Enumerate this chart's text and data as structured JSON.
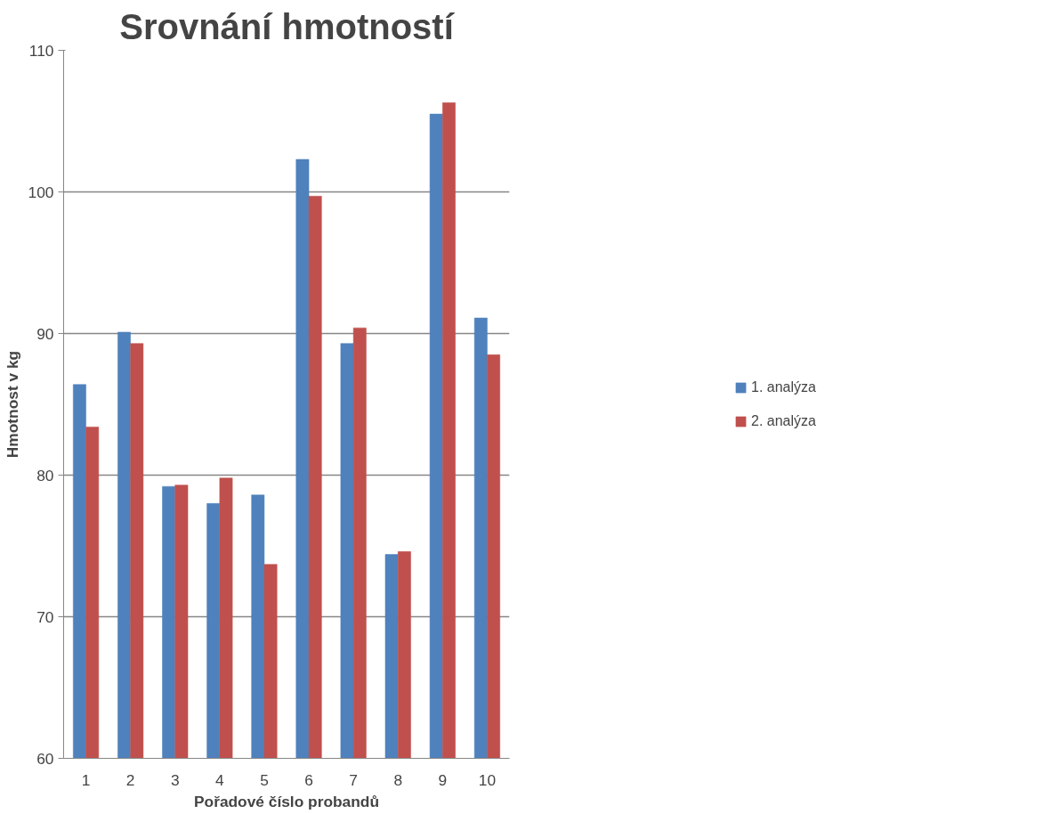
{
  "chart_data": {
    "type": "bar",
    "title": "Srovnání hmotností",
    "xlabel": "Pořadové číslo probandů",
    "ylabel": "Hmotnost v kg",
    "categories": [
      "1",
      "2",
      "3",
      "4",
      "5",
      "6",
      "7",
      "8",
      "9",
      "10"
    ],
    "series": [
      {
        "name": "1. analýza",
        "color": "#4f81bd",
        "values": [
          86.4,
          90.1,
          79.2,
          78.0,
          78.6,
          102.3,
          89.3,
          74.4,
          105.5,
          91.1
        ]
      },
      {
        "name": "2. analýza",
        "color": "#c0504d",
        "values": [
          83.4,
          89.3,
          79.3,
          79.8,
          73.7,
          99.7,
          90.4,
          74.6,
          106.3,
          88.5
        ]
      }
    ],
    "ylim": [
      60,
      110
    ],
    "yticks": [
      60,
      70,
      80,
      90,
      100,
      110
    ],
    "grid": "y",
    "legend": "right"
  }
}
